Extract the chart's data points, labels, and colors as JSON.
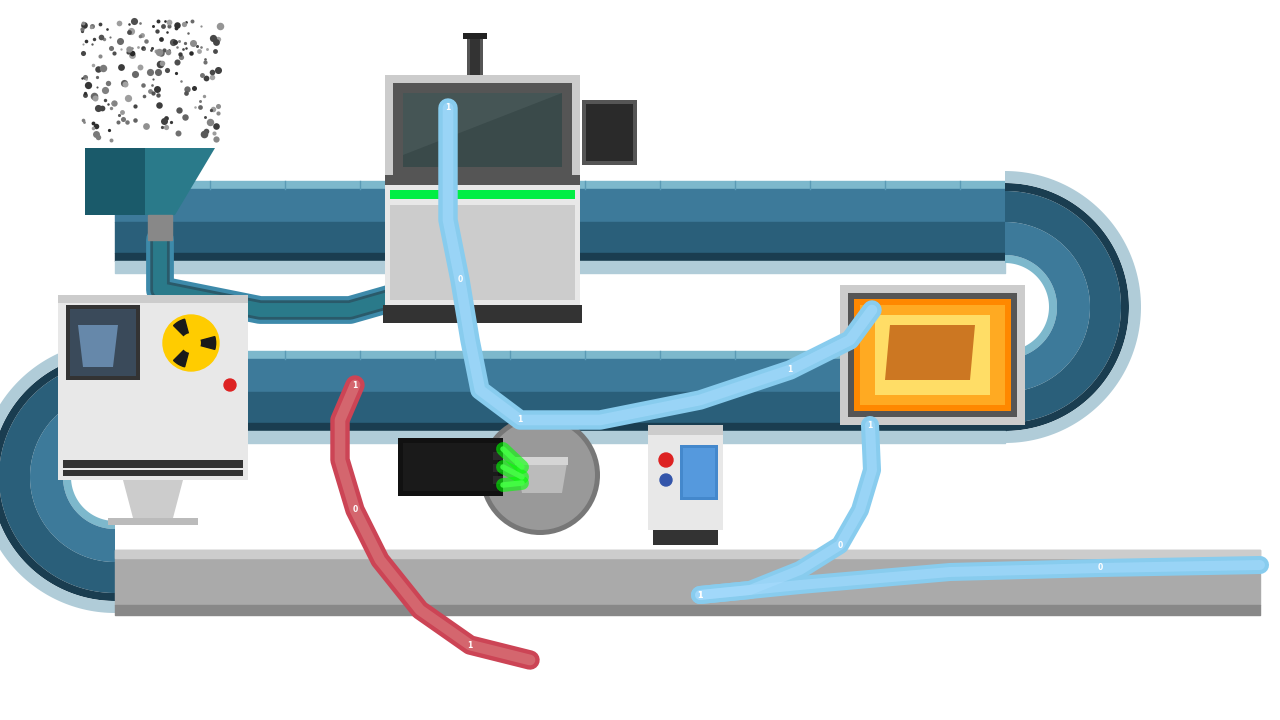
{
  "bg": "#ffffff",
  "conv_top": "#7db8cc",
  "conv_mid": "#3d7a9a",
  "conv_dark": "#2a5f7a",
  "conv_very_dark": "#1a3d50",
  "conv_shadow": "#b0ccd8",
  "conv_edge": "#0d1f2d",
  "funnel_teal": "#2a7a8a",
  "funnel_dark": "#1a5a6a",
  "funnel_pipe": "#3d8aaa",
  "machine_light": "#e8e8e8",
  "machine_mid": "#cccccc",
  "machine_dark": "#555555",
  "machine_very_dark": "#333333",
  "machine_black": "#1a1a1a",
  "machine_glass": "#3a4a4a",
  "green_led": "#00ee44",
  "orange": "#ff8800",
  "orange2": "#ffaa22",
  "red_dot": "#dd2222",
  "blue_btn": "#3355cc",
  "rad_yellow": "#ffcc00",
  "laser_green": "#00ff00",
  "laser_green2": "#44ff44",
  "cable_blue": "#88ccee",
  "cable_red": "#cc4455",
  "cable_blue_light": "#aaddff",
  "cable_red_light": "#dd8888"
}
